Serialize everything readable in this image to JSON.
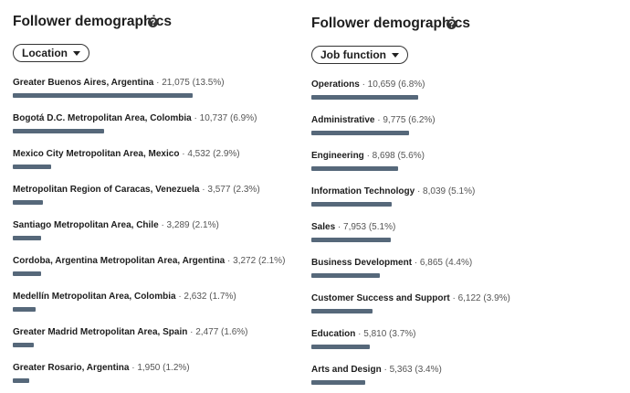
{
  "panels": [
    {
      "title": "Follower demographics",
      "filter": "Location",
      "items": [
        {
          "name": "Greater Buenos Aires, Argentina",
          "value": 21075,
          "value_label": "· 21,075 (13.5%)"
        },
        {
          "name": "Bogotá D.C. Metropolitan Area, Colombia",
          "value": 10737,
          "value_label": "· 10,737 (6.9%)"
        },
        {
          "name": "Mexico City Metropolitan Area, Mexico",
          "value": 4532,
          "value_label": "· 4,532 (2.9%)"
        },
        {
          "name": "Metropolitan Region of Caracas, Venezuela",
          "value": 3577,
          "value_label": "· 3,577 (2.3%)"
        },
        {
          "name": "Santiago Metropolitan Area, Chile",
          "value": 3289,
          "value_label": "· 3,289 (2.1%)"
        },
        {
          "name": "Cordoba, Argentina Metropolitan Area, Argentina",
          "value": 3272,
          "value_label": "· 3,272 (2.1%)"
        },
        {
          "name": "Medellín Metropolitan Area, Colombia",
          "value": 2632,
          "value_label": "· 2,632 (1.7%)"
        },
        {
          "name": "Greater Madrid Metropolitan Area, Spain",
          "value": 2477,
          "value_label": "· 2,477 (1.6%)"
        },
        {
          "name": "Greater Rosario, Argentina",
          "value": 1950,
          "value_label": "· 1,950 (1.2%)"
        }
      ]
    },
    {
      "title": "Follower demographics",
      "filter": "Job function",
      "items": [
        {
          "name": "Operations",
          "value": 10659,
          "value_label": "· 10,659 (6.8%)"
        },
        {
          "name": "Administrative",
          "value": 9775,
          "value_label": "· 9,775 (6.2%)"
        },
        {
          "name": "Engineering",
          "value": 8698,
          "value_label": "· 8,698 (5.6%)"
        },
        {
          "name": "Information Technology",
          "value": 8039,
          "value_label": "· 8,039 (5.1%)"
        },
        {
          "name": "Sales",
          "value": 7953,
          "value_label": "· 7,953 (5.1%)"
        },
        {
          "name": "Business Development",
          "value": 6865,
          "value_label": "· 6,865 (4.4%)"
        },
        {
          "name": "Customer Success and Support",
          "value": 6122,
          "value_label": "· 6,122 (3.9%)"
        },
        {
          "name": "Education",
          "value": 5810,
          "value_label": "· 5,810 (3.7%)"
        },
        {
          "name": "Arts and Design",
          "value": 5363,
          "value_label": "· 5,363 (3.4%)"
        }
      ]
    }
  ]
}
